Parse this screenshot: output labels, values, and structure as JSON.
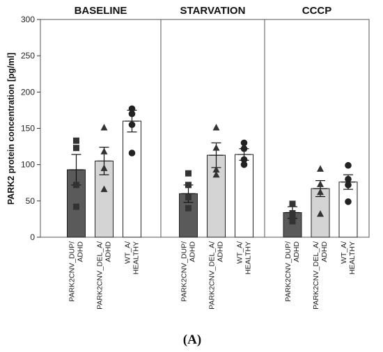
{
  "chart_data": {
    "type": "bar",
    "ylabel": "PARK2 protein concentration [pg/ml]",
    "ylim": [
      0,
      300
    ],
    "yticks": [
      0,
      50,
      100,
      150,
      200,
      250,
      300
    ],
    "grid": false,
    "caption": "(A)",
    "category_labels": [
      [
        "PARK2CNV_DUP/",
        "ADHD"
      ],
      [
        "PARK2CNV_DEL_A/",
        "ADHD"
      ],
      [
        "WT_A/",
        "HEALTHY"
      ]
    ],
    "bar_colors": [
      "#5a5a5a",
      "#d4d4d4",
      "#ffffff"
    ],
    "markers": [
      "square",
      "triangle",
      "circle"
    ],
    "panels": [
      {
        "title": "BASELINE",
        "bars": [
          {
            "mean": 93,
            "sem": 21,
            "points": [
              133,
              123,
              72,
              42
            ]
          },
          {
            "mean": 105,
            "sem": 19,
            "points": [
              151,
              118,
              95,
              66
            ]
          },
          {
            "mean": 160,
            "sem": 15,
            "points": [
              177,
              170,
              155,
              116
            ]
          }
        ]
      },
      {
        "title": "STARVATION",
        "bars": [
          {
            "mean": 60,
            "sem": 12,
            "points": [
              88,
              72,
              55,
              40
            ]
          },
          {
            "mean": 113,
            "sem": 17,
            "points": [
              151,
              123,
              93,
              86
            ]
          },
          {
            "mean": 114,
            "sem": 8,
            "points": [
              130,
              122,
              107,
              100
            ]
          }
        ]
      },
      {
        "title": "CCCP",
        "bars": [
          {
            "mean": 34,
            "sem": 8,
            "points": [
              46,
              33,
              28,
              22
            ]
          },
          {
            "mean": 67,
            "sem": 11,
            "points": [
              94,
              73,
              62,
              32
            ]
          },
          {
            "mean": 76,
            "sem": 10,
            "points": [
              99,
              80,
              72,
              49
            ]
          }
        ]
      }
    ]
  }
}
